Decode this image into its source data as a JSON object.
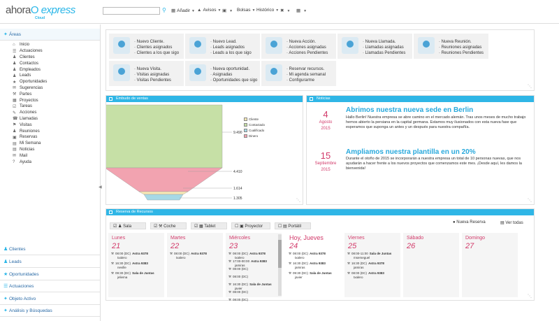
{
  "brand": {
    "name_a": "ahora",
    "name_b": "express",
    "sub": "Cloud"
  },
  "toolbar": {
    "search_placeholder": "",
    "items": [
      {
        "label": "Añadir"
      },
      {
        "label": "Avisos"
      },
      {
        "label": ""
      },
      {
        "label": "Bolsas"
      },
      {
        "label": "Histórico"
      },
      {
        "label": ""
      },
      {
        "label": ""
      }
    ]
  },
  "sidebar": {
    "areas_label": "Áreas",
    "items": [
      {
        "label": "Inicio",
        "icon": "home-icon"
      },
      {
        "label": "Actuaciones",
        "icon": "list-icon"
      },
      {
        "label": "Clientes",
        "icon": "users-icon"
      },
      {
        "label": "Contactos",
        "icon": "contact-icon"
      },
      {
        "label": "Empleados",
        "icon": "user-icon"
      },
      {
        "label": "Leads",
        "icon": "lead-icon"
      },
      {
        "label": "Oportunidades",
        "icon": "opportunity-icon"
      },
      {
        "label": "Sugerencias",
        "icon": "suggestion-icon"
      },
      {
        "label": "Partes",
        "icon": "wrench-icon"
      },
      {
        "label": "Proyectos",
        "icon": "folder-icon"
      },
      {
        "label": "Tareas",
        "icon": "task-icon"
      },
      {
        "label": "Acciones",
        "icon": "action-icon"
      },
      {
        "label": "Llamadas",
        "icon": "phone-icon"
      },
      {
        "label": "Visitas",
        "icon": "visit-icon"
      },
      {
        "label": "Reuniones",
        "icon": "meeting-icon"
      },
      {
        "label": "Reservas",
        "icon": "reserve-icon"
      },
      {
        "label": "Mi Semana",
        "icon": "calendar-icon"
      },
      {
        "label": "Noticias",
        "icon": "news-icon"
      },
      {
        "label": "Mail",
        "icon": "mail-icon"
      },
      {
        "label": "Ayuda",
        "icon": "help-icon"
      }
    ],
    "sections": [
      {
        "label": "Clientes"
      },
      {
        "label": "Leads"
      },
      {
        "label": "Oportunidades"
      },
      {
        "label": "Actuaciones"
      },
      {
        "label": "Objeto Activo"
      },
      {
        "label": "Análisis y Búsquedas"
      }
    ]
  },
  "quick_actions": [
    {
      "lines": [
        "Nuevo Cliente.",
        "Clientes asignados",
        "Clientes a los que sigo"
      ]
    },
    {
      "lines": [
        "Nuevo Lead.",
        "Leads asignados",
        "Leads a los que sigo"
      ]
    },
    {
      "lines": [
        "Nueva Acción.",
        "Acciones asignadas",
        "Acciones Pendientes"
      ]
    },
    {
      "lines": [
        "Nueva Llamada.",
        "Llamadas asignadas",
        "Llamadas Pendientes"
      ]
    },
    {
      "lines": [
        "Nueva Reunión.",
        "Reuniones asignadas",
        "Reuniones Pendientes"
      ]
    },
    {
      "lines": [
        "Nueva Visita.",
        "Visitas asignadas",
        "Visitas Pendientes"
      ]
    },
    {
      "lines": [
        "Nueva oportunidad.",
        "Asignadas",
        "Oportunidades que sigo"
      ]
    },
    {
      "lines": [
        "Reservar recursos.",
        "Mi agenda semanal",
        "Configurarme"
      ]
    }
  ],
  "funnel": {
    "title": "Embudo de ventas",
    "legend": [
      "Cliente",
      "Contactado",
      "Cualificado",
      "Dinero"
    ],
    "colors": [
      "#f7e7b4",
      "#c6e0a6",
      "#a7d9e6",
      "#f2a3b0"
    ]
  },
  "chart_data": {
    "type": "funnel",
    "categories": [
      "Contactado",
      "Dinero",
      "Cliente",
      "Cualificado"
    ],
    "values": [
      9490,
      4410,
      1614,
      1305
    ],
    "value_labels": [
      "9.490",
      "4.410",
      "1.614",
      "1.305"
    ]
  },
  "news": {
    "title": "Noticias",
    "items": [
      {
        "day": "4",
        "month": "Agosto",
        "year": "2015",
        "headline": "Abrimos nuestra nueva sede en Berlin",
        "body": "Hallo Berlin! Nuestra empresa se abre camino en el mercado alemán. Tras unos meses de mucho trabajo hemos abierto la persiana en la capital germana. Estamos muy ilusionados con esta nueva fase que esperamos que suponga un antes y un después para nuestra compañía."
      },
      {
        "day": "15",
        "month": "Septiembre",
        "year": "2015",
        "headline": "Ampliamos nuestra plantilla en un 20%",
        "body": "Durante el otoño de 2015 se incorporarán a nuestra empresa un total de 10 personas nuevas, que nos ayudarán a hacer frente a los nuevos proyectos que comenzamos este mes. ¡Desde aquí, les damos la bienvenida!"
      }
    ]
  },
  "reservas": {
    "title": "Reserva de Recursos",
    "filters": [
      "Sala",
      "Coche",
      "Tablet",
      "Proyector",
      "Portátil"
    ],
    "new_label": "Nueva Reserva",
    "all_label": "Ver todas",
    "days": [
      {
        "name": "Lunes",
        "num": "21",
        "items": [
          {
            "time": "08:00 (DC)",
            "place": "Astra 9378",
            "who": "txalero"
          },
          {
            "time": "16:30 (DC)",
            "place": "Astra 9383",
            "who": "neville"
          },
          {
            "time": "09:30 (DC)",
            "place": "Sala de Juntas",
            "who": "jeliema"
          }
        ]
      },
      {
        "name": "Martes",
        "num": "22",
        "items": [
          {
            "time": "08:00 (DC)",
            "place": "Astra 9378",
            "who": "txalero"
          }
        ]
      },
      {
        "name": "Miércoles",
        "num": "23",
        "items": [
          {
            "time": "08:00 (DC)",
            "place": "Astra 9378",
            "who": "txalero"
          },
          {
            "time": "17:00-00:00",
            "place": "Astra 9383",
            "who": "jamiras"
          },
          {
            "time": "08:00 (DC)",
            "place": "",
            "who": ""
          },
          {
            "time": "08:00 (DC)",
            "place": "",
            "who": ""
          },
          {
            "time": "16:30 (DC)",
            "place": "Sala de Juntas",
            "who": "javier"
          },
          {
            "time": "08:00 (DC)",
            "place": "",
            "who": ""
          },
          {
            "time": "08:00 (DC)",
            "place": "",
            "who": ""
          }
        ]
      },
      {
        "name": "Hoy, Jueves",
        "num": "24",
        "items": [
          {
            "time": "08:00 (DC)",
            "place": "Astra 9378",
            "who": "txalero"
          },
          {
            "time": "16:30 (DC)",
            "place": "Astra 9383",
            "who": "jamiras"
          },
          {
            "time": "09:30 (DC)",
            "place": "Sala de Juntas",
            "who": "javier"
          }
        ]
      },
      {
        "name": "Viernes",
        "num": "25",
        "items": [
          {
            "time": "08:00-11:00",
            "place": "Sala de Juntas",
            "who": "msemeguel"
          },
          {
            "time": "16:30 (DC)",
            "place": "Astra 9378",
            "who": "jamiras"
          },
          {
            "time": "08:00 (DC)",
            "place": "Astra 9383",
            "who": "txalero"
          }
        ]
      },
      {
        "name": "Sábado",
        "num": "26",
        "items": []
      },
      {
        "name": "Domingo",
        "num": "27",
        "items": []
      }
    ]
  }
}
